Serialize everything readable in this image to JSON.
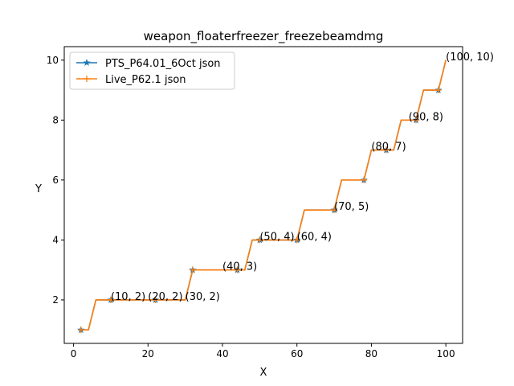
{
  "chart_data": {
    "type": "line",
    "title": "weapon_floaterfreezer_freezebeamdmg",
    "xlabel": "X",
    "ylabel": "Y",
    "xlim": [
      -2.5,
      104.5
    ],
    "ylim": [
      0.55,
      10.45
    ],
    "xticks": [
      0,
      20,
      40,
      60,
      80,
      100
    ],
    "yticks": [
      2,
      4,
      6,
      8,
      10
    ],
    "grid": false,
    "legend_position": "upper-left",
    "series": [
      {
        "name": "PTS_P64.01_6Oct json",
        "color": "#1f77b4",
        "marker": "star",
        "x": [
          2,
          4,
          6,
          8,
          10,
          12,
          14,
          16,
          18,
          20,
          22,
          24,
          26,
          28,
          30,
          32,
          34,
          36,
          38,
          40,
          42,
          44,
          46,
          48,
          50,
          52,
          54,
          56,
          58,
          60,
          62,
          64,
          66,
          68,
          70,
          72,
          74,
          76,
          78,
          80,
          82,
          84,
          86,
          88,
          90,
          92,
          94,
          96,
          98,
          100
        ],
        "y": [
          1,
          1,
          2,
          2,
          2,
          2,
          2,
          2,
          2,
          2,
          2,
          2,
          2,
          2,
          2,
          3,
          3,
          3,
          3,
          3,
          3,
          3,
          3,
          4,
          4,
          4,
          4,
          4,
          4,
          4,
          5,
          5,
          5,
          5,
          5,
          6,
          6,
          6,
          6,
          7,
          7,
          7,
          7,
          8,
          8,
          8,
          9,
          9,
          9,
          10
        ],
        "marker_x": [
          2,
          10,
          22,
          32,
          44,
          50,
          60,
          70,
          78,
          84,
          92,
          98
        ]
      },
      {
        "name": "Live_P62.1 json",
        "color": "#ff7f0e",
        "marker": "plus",
        "x": [
          2,
          4,
          6,
          8,
          10,
          12,
          14,
          16,
          18,
          20,
          22,
          24,
          26,
          28,
          30,
          32,
          34,
          36,
          38,
          40,
          42,
          44,
          46,
          48,
          50,
          52,
          54,
          56,
          58,
          60,
          62,
          64,
          66,
          68,
          70,
          72,
          74,
          76,
          78,
          80,
          82,
          84,
          86,
          88,
          90,
          92,
          94,
          96,
          98,
          100
        ],
        "y": [
          1,
          1,
          2,
          2,
          2,
          2,
          2,
          2,
          2,
          2,
          2,
          2,
          2,
          2,
          2,
          3,
          3,
          3,
          3,
          3,
          3,
          3,
          3,
          4,
          4,
          4,
          4,
          4,
          4,
          4,
          5,
          5,
          5,
          5,
          5,
          6,
          6,
          6,
          6,
          7,
          7,
          7,
          7,
          8,
          8,
          8,
          9,
          9,
          9,
          10
        ],
        "marker_x": [
          2,
          10,
          22,
          32,
          44,
          50,
          60,
          70,
          78,
          84,
          92,
          98
        ]
      }
    ],
    "annotations": [
      {
        "text": "(10, 2)",
        "x": 10,
        "y": 2
      },
      {
        "text": "(20, 2)",
        "x": 20,
        "y": 2
      },
      {
        "text": "(30, 2)",
        "x": 30,
        "y": 2
      },
      {
        "text": "(40, 3)",
        "x": 40,
        "y": 3
      },
      {
        "text": "(50, 4)",
        "x": 50,
        "y": 4
      },
      {
        "text": "(60, 4)",
        "x": 60,
        "y": 4
      },
      {
        "text": "(70, 5)",
        "x": 70,
        "y": 5
      },
      {
        "text": "(80, 7)",
        "x": 80,
        "y": 7
      },
      {
        "text": "(90, 8)",
        "x": 90,
        "y": 8
      },
      {
        "text": "(100, 10)",
        "x": 100,
        "y": 10
      }
    ]
  }
}
